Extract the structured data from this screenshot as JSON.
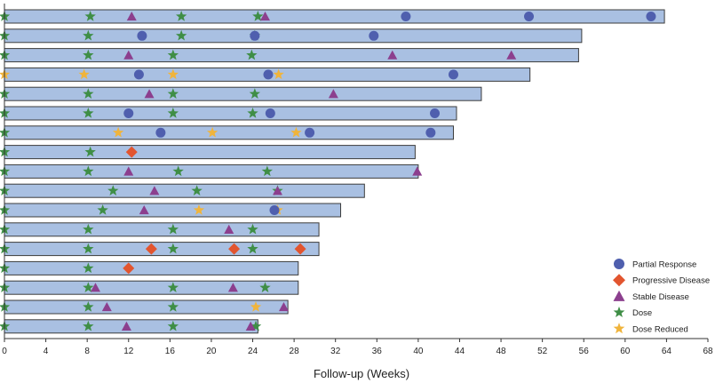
{
  "chart_data": {
    "type": "swimmer",
    "title": "",
    "xlabel": "Follow-up (Weeks)",
    "ylabel": "",
    "xlim": [
      0,
      68
    ],
    "xticks": [
      0,
      4,
      8,
      12,
      16,
      20,
      24,
      28,
      32,
      36,
      40,
      44,
      48,
      52,
      56,
      60,
      64,
      68
    ],
    "colors": {
      "bar_fill": "#a9c0e2",
      "bar_stroke": "#3c3c3c",
      "partial_response": "#4f5fae",
      "progressive_disease": "#e2552f",
      "stable_disease": "#8c3f8e",
      "dose": "#3f8e46",
      "dose_reduced": "#f0b43c"
    },
    "legend": {
      "position": "bottom-right",
      "entries": [
        {
          "key": "partial_response",
          "label": "Partial Response",
          "marker": "circle"
        },
        {
          "key": "progressive_disease",
          "label": "Progressive Disease",
          "marker": "diamond"
        },
        {
          "key": "stable_disease",
          "label": "Stable Disease",
          "marker": "triangle"
        },
        {
          "key": "dose",
          "label": "Dose",
          "marker": "star"
        },
        {
          "key": "dose_reduced",
          "label": "Dose Reduced",
          "marker": "star"
        }
      ]
    },
    "patients": [
      {
        "duration": 63.8,
        "events": {
          "dose": [
            0,
            8.3,
            17.1,
            24.5
          ],
          "dose_reduced": [],
          "stable_disease": [
            12.3,
            25.2
          ],
          "partial_response": [
            38.8,
            50.7,
            62.5
          ],
          "progressive_disease": []
        }
      },
      {
        "duration": 55.8,
        "events": {
          "dose": [
            0,
            8.1,
            17.1,
            24.2
          ],
          "dose_reduced": [],
          "stable_disease": [],
          "partial_response": [
            13.3,
            24.2,
            35.7
          ],
          "progressive_disease": []
        }
      },
      {
        "duration": 55.5,
        "events": {
          "dose": [
            0,
            8.1,
            16.3,
            23.9
          ],
          "dose_reduced": [],
          "stable_disease": [
            12.0,
            37.5,
            49.0
          ],
          "partial_response": [],
          "progressive_disease": []
        }
      },
      {
        "duration": 50.8,
        "events": {
          "dose": [],
          "dose_reduced": [
            0,
            7.7,
            16.3,
            26.5
          ],
          "stable_disease": [],
          "partial_response": [
            13.0,
            25.5,
            43.4
          ],
          "progressive_disease": []
        }
      },
      {
        "duration": 46.1,
        "events": {
          "dose": [
            0,
            8.1,
            16.3,
            24.2
          ],
          "dose_reduced": [],
          "stable_disease": [
            14.0,
            31.8
          ],
          "partial_response": [],
          "progressive_disease": []
        }
      },
      {
        "duration": 43.7,
        "events": {
          "dose": [
            0,
            8.1,
            16.3,
            24.0
          ],
          "dose_reduced": [],
          "stable_disease": [],
          "partial_response": [
            12.0,
            25.7,
            41.6
          ],
          "progressive_disease": []
        }
      },
      {
        "duration": 43.4,
        "events": {
          "dose": [
            0
          ],
          "dose_reduced": [
            11.0,
            20.1,
            28.2
          ],
          "stable_disease": [],
          "partial_response": [
            15.1,
            29.5,
            41.2
          ],
          "progressive_disease": []
        }
      },
      {
        "duration": 39.7,
        "events": {
          "dose": [
            0,
            8.3
          ],
          "dose_reduced": [],
          "stable_disease": [],
          "partial_response": [],
          "progressive_disease": [
            12.3
          ]
        }
      },
      {
        "duration": 40.0,
        "events": {
          "dose": [
            0,
            8.1,
            16.8,
            25.4
          ],
          "dose_reduced": [],
          "stable_disease": [
            12.0,
            39.9
          ],
          "partial_response": [],
          "progressive_disease": []
        }
      },
      {
        "duration": 34.8,
        "events": {
          "dose": [
            0,
            10.5,
            18.6,
            26.4
          ],
          "dose_reduced": [],
          "stable_disease": [
            14.5,
            26.4
          ],
          "partial_response": [],
          "progressive_disease": []
        }
      },
      {
        "duration": 32.5,
        "events": {
          "dose": [
            0,
            9.5
          ],
          "dose_reduced": [
            18.8,
            26.4
          ],
          "stable_disease": [
            13.5
          ],
          "partial_response": [
            26.1
          ],
          "progressive_disease": []
        }
      },
      {
        "duration": 30.4,
        "events": {
          "dose": [
            0,
            8.1,
            16.3,
            24.0
          ],
          "dose_reduced": [],
          "stable_disease": [
            21.7
          ],
          "partial_response": [],
          "progressive_disease": []
        }
      },
      {
        "duration": 30.4,
        "events": {
          "dose": [
            0,
            8.1,
            16.3,
            24.0
          ],
          "dose_reduced": [],
          "stable_disease": [],
          "partial_response": [],
          "progressive_disease": [
            14.2,
            22.2,
            28.6
          ]
        }
      },
      {
        "duration": 28.4,
        "events": {
          "dose": [
            0,
            8.1
          ],
          "dose_reduced": [],
          "stable_disease": [],
          "partial_response": [],
          "progressive_disease": [
            12.0
          ]
        }
      },
      {
        "duration": 28.4,
        "events": {
          "dose": [
            0,
            8.1,
            16.3,
            25.2
          ],
          "dose_reduced": [],
          "stable_disease": [
            8.8,
            22.1
          ],
          "partial_response": [],
          "progressive_disease": []
        }
      },
      {
        "duration": 27.4,
        "events": {
          "dose": [
            0,
            8.1,
            16.3
          ],
          "dose_reduced": [
            24.3
          ],
          "stable_disease": [
            9.9,
            27.0
          ],
          "partial_response": [],
          "progressive_disease": []
        }
      },
      {
        "duration": 24.5,
        "events": {
          "dose": [
            0,
            8.1,
            16.3,
            24.3
          ],
          "dose_reduced": [],
          "stable_disease": [
            11.8,
            23.8
          ],
          "partial_response": [],
          "progressive_disease": []
        }
      }
    ]
  }
}
